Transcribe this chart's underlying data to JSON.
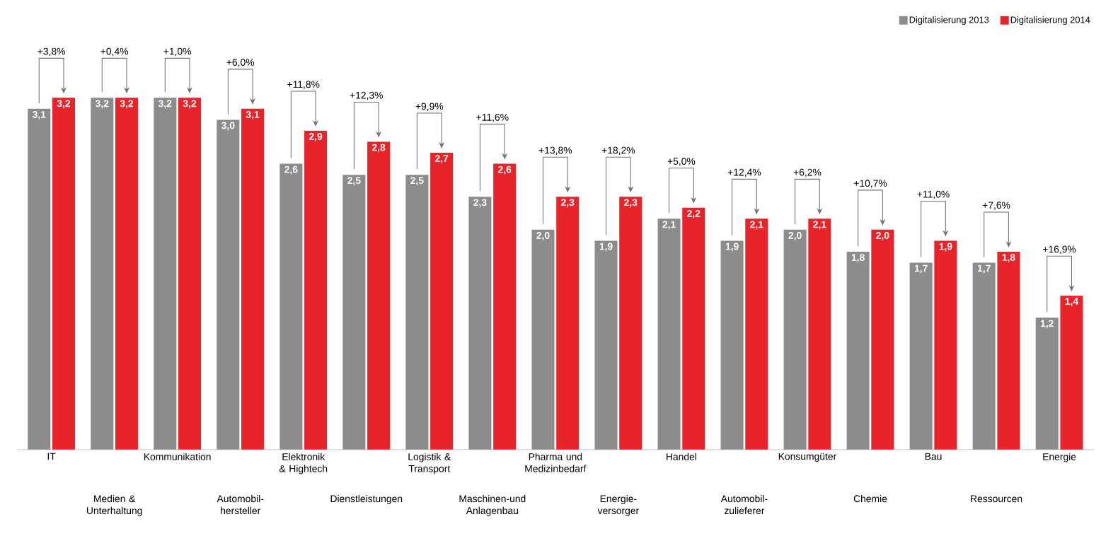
{
  "chart_data": {
    "type": "bar",
    "categories": [
      "IT",
      "Medien & Unterhaltung",
      "Kommunikation",
      "Automobil-hersteller",
      "Elektronik & Hightech",
      "Dienstleistungen",
      "Logistik & Transport",
      "Maschinen-und Anlagenbau",
      "Pharma und Medizinbedarf",
      "Energie-versorger",
      "Handel",
      "Automobil-zulieferer",
      "Konsumgüter",
      "Chemie",
      "Bau",
      "Ressourcen",
      "Energie"
    ],
    "series": [
      {
        "name": "Digitalisierung 2013",
        "color": "#8c8c8c",
        "values": [
          3.1,
          3.2,
          3.2,
          3.0,
          2.6,
          2.5,
          2.5,
          2.3,
          2.0,
          1.9,
          2.1,
          1.9,
          2.0,
          1.8,
          1.7,
          1.7,
          1.2
        ],
        "value_labels": [
          "3,1",
          "3,2",
          "3,2",
          "3,0",
          "2,6",
          "2,5",
          "2,5",
          "2,3",
          "2,0",
          "1,9",
          "2,1",
          "1,9",
          "2,0",
          "1,8",
          "1,7",
          "1,7",
          "1,2"
        ]
      },
      {
        "name": "Digitalisierung 2014",
        "color": "#e8232a",
        "values": [
          3.2,
          3.2,
          3.2,
          3.1,
          2.9,
          2.8,
          2.7,
          2.6,
          2.3,
          2.3,
          2.2,
          2.1,
          2.1,
          2.0,
          1.9,
          1.8,
          1.4
        ],
        "value_labels": [
          "3,2",
          "3,2",
          "3,2",
          "3,1",
          "2,9",
          "2,8",
          "2,7",
          "2,6",
          "2,3",
          "2,3",
          "2,2",
          "2,1",
          "2,1",
          "2,0",
          "1,9",
          "1,8",
          "1,4"
        ]
      }
    ],
    "annotations": [
      "+3,8%",
      "+0,4%",
      "+1,0%",
      "+6,0%",
      "+11,8%",
      "+12,3%",
      "+9,9%",
      "+11,6%",
      "+13,8%",
      "+18,2%",
      "+5,0%",
      "+12,4%",
      "+6,2%",
      "+10,7%",
      "+11,0%",
      "+7,6%",
      "+16,9%"
    ],
    "legend": "top right"
  }
}
